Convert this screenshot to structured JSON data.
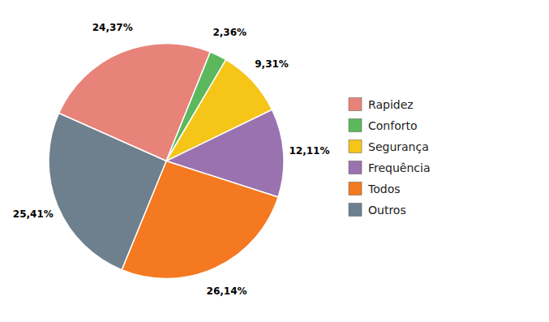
{
  "chart_data": {
    "type": "pie",
    "categories": [
      "Rapidez",
      "Conforto",
      "Segurança",
      "Frequência",
      "Todos",
      "Outros"
    ],
    "values": [
      24.37,
      2.36,
      9.31,
      12.11,
      26.14,
      25.41
    ],
    "value_labels": [
      "24,37%",
      "2,36%",
      "9,31%",
      "12,11%",
      "26,14%",
      "25,41%"
    ],
    "colors": [
      "#E8837A",
      "#5CB85C",
      "#F5C518",
      "#9B72B0",
      "#F47920",
      "#6E7F8D"
    ],
    "data_labels": true,
    "legend": "right"
  }
}
